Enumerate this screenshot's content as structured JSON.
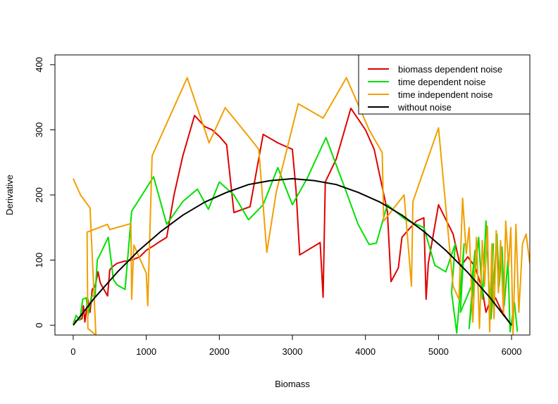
{
  "chart_data": {
    "type": "line",
    "title": "",
    "xlabel": "Biomass",
    "ylabel": "Derivative",
    "xlim": [
      -250,
      6250
    ],
    "ylim": [
      -15,
      415
    ],
    "xticks": [
      0,
      1000,
      2000,
      3000,
      4000,
      5000,
      6000
    ],
    "yticks": [
      0,
      100,
      200,
      300,
      400
    ],
    "grid": false,
    "legend_position": "top-right",
    "series": [
      {
        "name": "biomass dependent noise",
        "color": "#e00000",
        "values": [
          [
            0,
            5
          ],
          [
            60,
            8
          ],
          [
            120,
            10
          ],
          [
            140,
            30
          ],
          [
            160,
            5
          ],
          [
            200,
            40
          ],
          [
            230,
            20
          ],
          [
            260,
            55
          ],
          [
            300,
            60
          ],
          [
            340,
            82
          ],
          [
            370,
            65
          ],
          [
            470,
            45
          ],
          [
            500,
            85
          ],
          [
            540,
            90
          ],
          [
            600,
            95
          ],
          [
            690,
            98
          ],
          [
            800,
            100
          ],
          [
            910,
            105
          ],
          [
            1000,
            115
          ],
          [
            1100,
            122
          ],
          [
            1180,
            128
          ],
          [
            1280,
            135
          ],
          [
            1380,
            200
          ],
          [
            1500,
            260
          ],
          [
            1660,
            322
          ],
          [
            1800,
            305
          ],
          [
            1900,
            300
          ],
          [
            2000,
            290
          ],
          [
            2100,
            277
          ],
          [
            2200,
            173
          ],
          [
            2420,
            182
          ],
          [
            2600,
            293
          ],
          [
            2800,
            280
          ],
          [
            3000,
            270
          ],
          [
            3050,
            207
          ],
          [
            3100,
            108
          ],
          [
            3380,
            127
          ],
          [
            3420,
            43
          ],
          [
            3450,
            220
          ],
          [
            3600,
            255
          ],
          [
            3800,
            333
          ],
          [
            4000,
            300
          ],
          [
            4120,
            270
          ],
          [
            4300,
            175
          ],
          [
            4350,
            67
          ],
          [
            4450,
            88
          ],
          [
            4500,
            135
          ],
          [
            4600,
            148
          ],
          [
            4700,
            160
          ],
          [
            4800,
            165
          ],
          [
            4830,
            40
          ],
          [
            4860,
            95
          ],
          [
            5000,
            185
          ],
          [
            5200,
            140
          ],
          [
            5300,
            90
          ],
          [
            5400,
            105
          ],
          [
            5500,
            90
          ],
          [
            5600,
            55
          ],
          [
            5650,
            20
          ],
          [
            5700,
            35
          ],
          [
            5780,
            42
          ],
          [
            5850,
            25
          ],
          [
            5920,
            12
          ],
          [
            6000,
            0
          ]
        ]
      },
      {
        "name": "time dependent noise",
        "color": "#00e000",
        "values": [
          [
            0,
            2
          ],
          [
            40,
            15
          ],
          [
            90,
            8
          ],
          [
            130,
            40
          ],
          [
            180,
            42
          ],
          [
            200,
            15
          ],
          [
            220,
            25
          ],
          [
            250,
            45
          ],
          [
            300,
            45
          ],
          [
            330,
            100
          ],
          [
            480,
            135
          ],
          [
            550,
            70
          ],
          [
            600,
            62
          ],
          [
            710,
            55
          ],
          [
            800,
            175
          ],
          [
            1100,
            228
          ],
          [
            1280,
            155
          ],
          [
            1500,
            190
          ],
          [
            1700,
            209
          ],
          [
            1850,
            178
          ],
          [
            2000,
            220
          ],
          [
            2200,
            200
          ],
          [
            2400,
            162
          ],
          [
            2600,
            185
          ],
          [
            2800,
            242
          ],
          [
            3000,
            185
          ],
          [
            3200,
            225
          ],
          [
            3460,
            288
          ],
          [
            3700,
            216
          ],
          [
            3900,
            155
          ],
          [
            4050,
            124
          ],
          [
            4150,
            126
          ],
          [
            4300,
            185
          ],
          [
            4550,
            162
          ],
          [
            4800,
            150
          ],
          [
            4950,
            92
          ],
          [
            5100,
            82
          ],
          [
            5230,
            125
          ],
          [
            5180,
            50
          ],
          [
            5250,
            -12
          ],
          [
            5350,
            125
          ],
          [
            5300,
            20
          ],
          [
            5450,
            60
          ],
          [
            5500,
            115
          ],
          [
            5420,
            -5
          ],
          [
            5550,
            135
          ],
          [
            5600,
            40
          ],
          [
            5650,
            160
          ],
          [
            5700,
            35
          ],
          [
            5750,
            125
          ],
          [
            5720,
            10
          ],
          [
            5800,
            140
          ],
          [
            5830,
            60
          ],
          [
            5870,
            120
          ],
          [
            5900,
            30
          ],
          [
            5950,
            100
          ],
          [
            5980,
            -10
          ],
          [
            6040,
            35
          ],
          [
            6080,
            -10
          ]
        ]
      },
      {
        "name": "time independent noise",
        "color": "#f0a000",
        "values": [
          [
            0,
            225
          ],
          [
            100,
            200
          ],
          [
            230,
            180
          ],
          [
            310,
            -15
          ],
          [
            200,
            -5
          ],
          [
            190,
            143
          ],
          [
            470,
            155
          ],
          [
            500,
            147
          ],
          [
            790,
            156
          ],
          [
            800,
            40
          ],
          [
            830,
            123
          ],
          [
            1000,
            80
          ],
          [
            1020,
            30
          ],
          [
            1080,
            260
          ],
          [
            1560,
            380
          ],
          [
            1860,
            280
          ],
          [
            2080,
            334
          ],
          [
            2400,
            290
          ],
          [
            2540,
            270
          ],
          [
            2650,
            112
          ],
          [
            2780,
            205
          ],
          [
            3080,
            340
          ],
          [
            3420,
            318
          ],
          [
            3740,
            380
          ],
          [
            4050,
            300
          ],
          [
            4230,
            265
          ],
          [
            4250,
            160
          ],
          [
            4530,
            200
          ],
          [
            4630,
            60
          ],
          [
            4650,
            190
          ],
          [
            5000,
            303
          ],
          [
            5200,
            60
          ],
          [
            5280,
            40
          ],
          [
            5330,
            195
          ],
          [
            5380,
            110
          ],
          [
            5420,
            150
          ],
          [
            5470,
            5
          ],
          [
            5520,
            135
          ],
          [
            5560,
            -5
          ],
          [
            5600,
            130
          ],
          [
            5630,
            60
          ],
          [
            5670,
            152
          ],
          [
            5700,
            -10
          ],
          [
            5730,
            125
          ],
          [
            5760,
            10
          ],
          [
            5790,
            145
          ],
          [
            5820,
            50
          ],
          [
            5850,
            130
          ],
          [
            5890,
            15
          ],
          [
            5920,
            160
          ],
          [
            5960,
            90
          ],
          [
            5990,
            150
          ],
          [
            6020,
            -15
          ],
          [
            6060,
            155
          ],
          [
            6100,
            20
          ],
          [
            6150,
            125
          ],
          [
            6200,
            140
          ],
          [
            6250,
            95
          ]
        ]
      },
      {
        "name": "without noise",
        "color": "#000000",
        "values": [
          [
            0,
            0
          ],
          [
            300,
            43
          ],
          [
            600,
            81
          ],
          [
            900,
            115
          ],
          [
            1200,
            144
          ],
          [
            1500,
            169
          ],
          [
            1800,
            189
          ],
          [
            2100,
            204
          ],
          [
            2400,
            216
          ],
          [
            2700,
            222
          ],
          [
            3000,
            225
          ],
          [
            3300,
            222
          ],
          [
            3600,
            216
          ],
          [
            3900,
            204
          ],
          [
            4200,
            189
          ],
          [
            4500,
            169
          ],
          [
            4800,
            144
          ],
          [
            5100,
            115
          ],
          [
            5400,
            81
          ],
          [
            5700,
            43
          ],
          [
            6000,
            0
          ]
        ]
      }
    ]
  }
}
